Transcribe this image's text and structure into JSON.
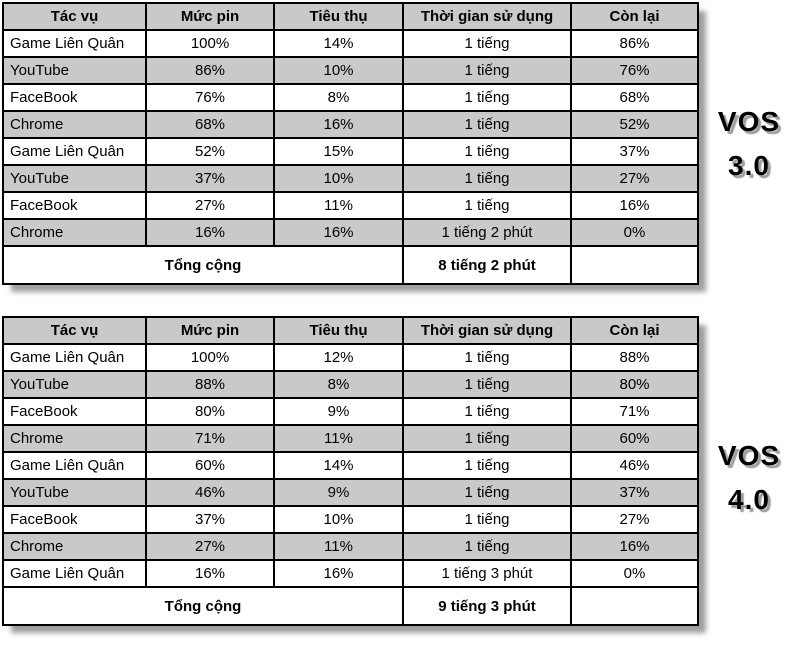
{
  "colors": {
    "stripe_bg": "#c9c9c9",
    "header_bg": "#c9c9c9",
    "border": "#000000",
    "table_shadow": "#9f9f9f",
    "text": "#000000",
    "page_bg": "#ffffff"
  },
  "chart_data": [
    {
      "type": "table",
      "title": "VOS 3.0",
      "version_lines": [
        "VOS",
        "3.0"
      ],
      "columns": [
        "Tác vụ",
        "Mức pin",
        "Tiêu thụ",
        "Thời gian sử dụng",
        "Còn lại"
      ],
      "rows": [
        [
          "Game Liên Quân",
          "100%",
          "14%",
          "1 tiếng",
          "86%"
        ],
        [
          "YouTube",
          "86%",
          "10%",
          "1 tiếng",
          "76%"
        ],
        [
          "FaceBook",
          "76%",
          "8%",
          "1 tiếng",
          "68%"
        ],
        [
          "Chrome",
          "68%",
          "16%",
          "1 tiếng",
          "52%"
        ],
        [
          "Game Liên Quân",
          "52%",
          "15%",
          "1 tiếng",
          "37%"
        ],
        [
          "YouTube",
          "37%",
          "10%",
          "1 tiếng",
          "27%"
        ],
        [
          "FaceBook",
          "27%",
          "11%",
          "1 tiếng",
          "16%"
        ],
        [
          "Chrome",
          "16%",
          "16%",
          "1 tiếng 2 phút",
          "0%"
        ]
      ],
      "total_row": {
        "label": "Tổng cộng",
        "duration": "8 tiếng 2 phút",
        "remaining": ""
      }
    },
    {
      "type": "table",
      "title": "VOS 4.0",
      "version_lines": [
        "VOS",
        "4.0"
      ],
      "columns": [
        "Tác vụ",
        "Mức pin",
        "Tiêu thụ",
        "Thời gian sử dụng",
        "Còn lại"
      ],
      "rows": [
        [
          "Game Liên Quân",
          "100%",
          "12%",
          "1 tiếng",
          "88%"
        ],
        [
          "YouTube",
          "88%",
          "8%",
          "1 tiếng",
          "80%"
        ],
        [
          "FaceBook",
          "80%",
          "9%",
          "1 tiếng",
          "71%"
        ],
        [
          "Chrome",
          "71%",
          "11%",
          "1 tiếng",
          "60%"
        ],
        [
          "Game Liên Quân",
          "60%",
          "14%",
          "1 tiếng",
          "46%"
        ],
        [
          "YouTube",
          "46%",
          "9%",
          "1 tiếng",
          "37%"
        ],
        [
          "FaceBook",
          "37%",
          "10%",
          "1 tiếng",
          "27%"
        ],
        [
          "Chrome",
          "27%",
          "11%",
          "1 tiếng",
          "16%"
        ],
        [
          "Game Liên Quân",
          "16%",
          "16%",
          "1 tiếng 3 phút",
          "0%"
        ]
      ],
      "total_row": {
        "label": "Tổng cộng",
        "duration": "9 tiếng 3 phút",
        "remaining": ""
      }
    }
  ]
}
